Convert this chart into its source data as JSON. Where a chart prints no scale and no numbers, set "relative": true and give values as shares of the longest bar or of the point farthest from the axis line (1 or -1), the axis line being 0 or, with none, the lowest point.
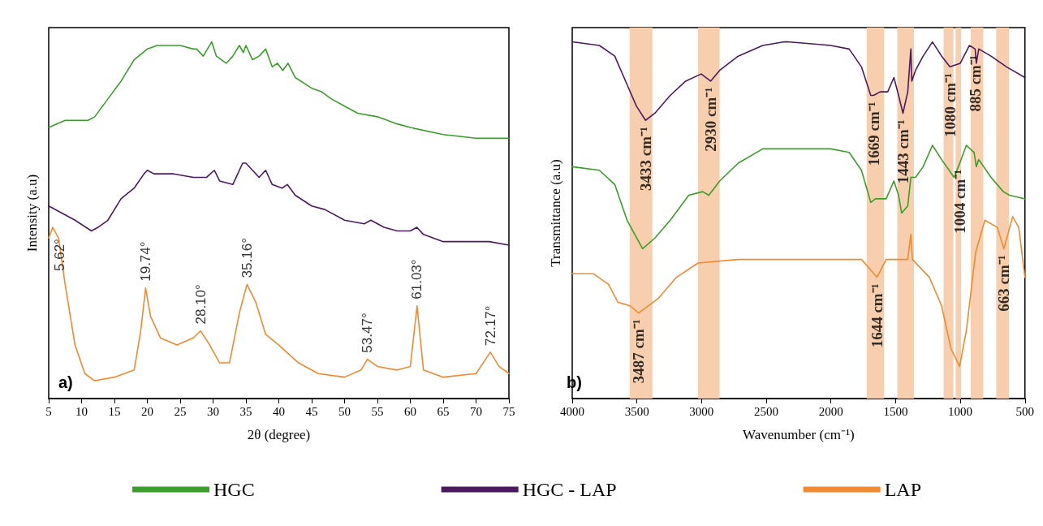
{
  "chart_data": [
    {
      "type": "line",
      "xlabel": "2θ (degree)",
      "ylabel": "Intensity (a.u)",
      "relative": true,
      "marker": "none",
      "legend": "bottom",
      "xlim": [
        5,
        75
      ],
      "xticks": [
        5,
        10,
        15,
        20,
        25,
        30,
        35,
        40,
        45,
        50,
        55,
        60,
        65,
        70,
        75
      ],
      "annotations": [
        "a)",
        {
          "text": "5.62°",
          "x": 5.62,
          "y": 0.48
        },
        {
          "text": "19.74°",
          "x": 19.74,
          "y": 0.31
        },
        {
          "text": "28.10°",
          "x": 28.1,
          "y": 0.19
        },
        {
          "text": "35.16°",
          "x": 35.16,
          "y": 0.32
        },
        {
          "text": "53.47°",
          "x": 53.47,
          "y": 0.11
        },
        {
          "text": "61.03°",
          "x": 61.03,
          "y": 0.26
        },
        {
          "text": "72.17°",
          "x": 72.17,
          "y": 0.13
        }
      ],
      "series": [
        {
          "name": "HGC",
          "color": "#3a9e2a",
          "x": [
            5,
            7.5,
            9,
            11,
            12,
            14,
            16,
            18,
            20,
            21.5,
            25,
            27,
            27.5,
            28.5,
            29.8,
            30.5,
            32,
            33,
            34,
            34.6,
            35,
            36,
            37,
            38,
            39,
            39.8,
            40.6,
            41.4,
            42.5,
            45,
            46.5,
            48,
            50,
            52,
            55,
            58,
            60,
            65,
            70,
            75
          ],
          "values": [
            0.76,
            0.78,
            0.78,
            0.78,
            0.79,
            0.84,
            0.89,
            0.95,
            0.98,
            0.99,
            0.99,
            0.98,
            0.98,
            0.96,
            1.0,
            0.96,
            0.94,
            0.96,
            0.99,
            0.97,
            0.99,
            0.95,
            0.96,
            0.98,
            0.93,
            0.94,
            0.92,
            0.94,
            0.9,
            0.87,
            0.86,
            0.84,
            0.82,
            0.8,
            0.79,
            0.77,
            0.76,
            0.74,
            0.73,
            0.73
          ]
        },
        {
          "name": "HGC - LAP",
          "color": "#4b1a5e",
          "x": [
            5,
            7,
            9,
            11.5,
            12.5,
            14,
            16,
            18,
            19.5,
            20,
            21,
            24,
            27,
            29,
            30.2,
            31,
            33,
            34.5,
            35,
            36,
            37,
            38,
            39,
            40.5,
            41.3,
            42.5,
            45,
            47,
            50,
            53,
            54,
            56,
            58,
            60,
            61,
            62,
            65,
            70,
            72,
            75
          ],
          "values": [
            0.54,
            0.52,
            0.5,
            0.47,
            0.48,
            0.5,
            0.56,
            0.59,
            0.63,
            0.64,
            0.63,
            0.63,
            0.62,
            0.62,
            0.64,
            0.61,
            0.6,
            0.66,
            0.66,
            0.64,
            0.62,
            0.64,
            0.6,
            0.59,
            0.6,
            0.57,
            0.54,
            0.53,
            0.5,
            0.49,
            0.5,
            0.48,
            0.47,
            0.47,
            0.48,
            0.46,
            0.44,
            0.44,
            0.44,
            0.43
          ]
        },
        {
          "name": "LAP",
          "color": "#f08a30",
          "x": [
            5,
            5.62,
            6.5,
            7.5,
            9,
            10.5,
            12,
            15,
            18,
            19,
            19.74,
            20.5,
            22,
            24.5,
            27,
            28.1,
            29.5,
            31,
            32.5,
            34,
            35.16,
            36.5,
            38,
            40,
            43,
            46,
            50,
            52.5,
            53.47,
            55,
            58,
            60,
            61.03,
            62,
            65,
            70,
            72.17,
            73.5,
            75
          ],
          "values": [
            0.45,
            0.48,
            0.45,
            0.32,
            0.15,
            0.07,
            0.05,
            0.06,
            0.08,
            0.19,
            0.31,
            0.23,
            0.17,
            0.15,
            0.17,
            0.19,
            0.15,
            0.1,
            0.1,
            0.24,
            0.32,
            0.27,
            0.18,
            0.15,
            0.1,
            0.07,
            0.06,
            0.08,
            0.11,
            0.09,
            0.08,
            0.09,
            0.26,
            0.08,
            0.06,
            0.07,
            0.13,
            0.09,
            0.07
          ]
        }
      ]
    },
    {
      "type": "line",
      "xlabel": "Wavenumber (cm⁻¹)",
      "ylabel": "Transmittance (a.u)",
      "relative": true,
      "marker": "none",
      "xlim": [
        4000,
        500
      ],
      "xticks": [
        4000,
        3500,
        3000,
        2500,
        2000,
        1500,
        1000,
        500
      ],
      "bands": [
        {
          "axis": "x",
          "from": 3556,
          "to": 3380,
          "color": "#f7cfae"
        },
        {
          "axis": "x",
          "from": 3027,
          "to": 2860,
          "color": "#f7cfae"
        },
        {
          "axis": "x",
          "from": 1723,
          "to": 1589,
          "color": "#f7cfae"
        },
        {
          "axis": "x",
          "from": 1487,
          "to": 1358,
          "color": "#f7cfae"
        },
        {
          "axis": "x",
          "from": 1129,
          "to": 1053,
          "color": "#f7cfae"
        },
        {
          "axis": "x",
          "from": 1036,
          "to": 993,
          "color": "#f7cfae"
        },
        {
          "axis": "x",
          "from": 919,
          "to": 822,
          "color": "#f7cfae"
        },
        {
          "axis": "x",
          "from": 722,
          "to": 624,
          "color": "#f7cfae"
        }
      ],
      "annotations": [
        "b)",
        {
          "text": "3433 cm⁻¹",
          "x": 3433,
          "y": 0.78
        },
        {
          "text": "3487 cm⁻¹",
          "x": 3487,
          "y": 0.24
        },
        {
          "text": "2930 cm⁻¹",
          "x": 2930,
          "y": 0.89
        },
        {
          "text": "1669 cm⁻¹",
          "x": 1669,
          "y": 0.85
        },
        {
          "text": "1644 cm⁻¹",
          "x": 1644,
          "y": 0.34
        },
        {
          "text": "1443 cm⁻¹",
          "x": 1443,
          "y": 0.8
        },
        {
          "text": "1080 cm⁻¹",
          "x": 1080,
          "y": 0.93
        },
        {
          "text": "1004 cm⁻¹",
          "x": 1004,
          "y": 0.66
        },
        {
          "text": "885 cm⁻¹",
          "x": 885,
          "y": 0.98
        },
        {
          "text": "663 cm⁻¹",
          "x": 663,
          "y": 0.42
        }
      ],
      "series": [
        {
          "color": "#4b1a5e",
          "x": [
            4000,
            3790,
            3671,
            3576,
            3504,
            3433,
            3361,
            3242,
            3123,
            3003,
            2930,
            2860,
            2717,
            2527,
            2360,
            2336,
            2002,
            1859,
            1764,
            1692,
            1669,
            1620,
            1561,
            1513,
            1477,
            1443,
            1406,
            1382,
            1375,
            1346,
            1287,
            1215,
            1144,
            1080,
            1000,
            929,
            885,
            876,
            857,
            762,
            643,
            500
          ],
          "values": [
            1.0,
            0.99,
            0.96,
            0.88,
            0.82,
            0.78,
            0.8,
            0.85,
            0.89,
            0.91,
            0.89,
            0.92,
            0.96,
            0.99,
            1.0,
            1.0,
            0.99,
            0.98,
            0.93,
            0.85,
            0.85,
            0.86,
            0.86,
            0.9,
            0.85,
            0.8,
            0.86,
            0.98,
            0.89,
            0.92,
            0.96,
            1.0,
            0.96,
            0.93,
            0.94,
            0.99,
            0.98,
            0.94,
            0.98,
            0.96,
            0.93,
            0.9
          ]
        },
        {
          "color": "#3a9e2a",
          "x": [
            4000,
            3790,
            3671,
            3576,
            3456,
            3361,
            3242,
            3099,
            2991,
            2944,
            2860,
            2717,
            2527,
            2360,
            2002,
            1859,
            1764,
            1692,
            1656,
            1573,
            1513,
            1477,
            1453,
            1406,
            1382,
            1346,
            1287,
            1215,
            1144,
            1048,
            1004,
            953,
            893,
            876,
            857,
            762,
            667,
            619,
            500
          ],
          "values": [
            0.65,
            0.64,
            0.6,
            0.5,
            0.42,
            0.45,
            0.5,
            0.57,
            0.58,
            0.57,
            0.61,
            0.66,
            0.7,
            0.7,
            0.7,
            0.69,
            0.64,
            0.55,
            0.56,
            0.56,
            0.61,
            0.57,
            0.52,
            0.54,
            0.62,
            0.62,
            0.65,
            0.71,
            0.67,
            0.62,
            0.66,
            0.71,
            0.69,
            0.65,
            0.67,
            0.62,
            0.58,
            0.57,
            0.56
          ]
        },
        {
          "color": "#f08a30",
          "x": [
            4000,
            3838,
            3719,
            3647,
            3552,
            3487,
            3337,
            3194,
            3027,
            2717,
            2002,
            1764,
            1692,
            1644,
            1573,
            1406,
            1382,
            1370,
            1239,
            1144,
            1072,
            1005,
            953,
            881,
            810,
            714,
            663,
            595,
            548,
            500
          ],
          "values": [
            0.35,
            0.35,
            0.32,
            0.27,
            0.26,
            0.24,
            0.28,
            0.34,
            0.38,
            0.39,
            0.39,
            0.39,
            0.36,
            0.34,
            0.39,
            0.39,
            0.46,
            0.39,
            0.34,
            0.26,
            0.14,
            0.09,
            0.19,
            0.41,
            0.5,
            0.48,
            0.42,
            0.51,
            0.48,
            0.34
          ]
        }
      ]
    }
  ]
}
